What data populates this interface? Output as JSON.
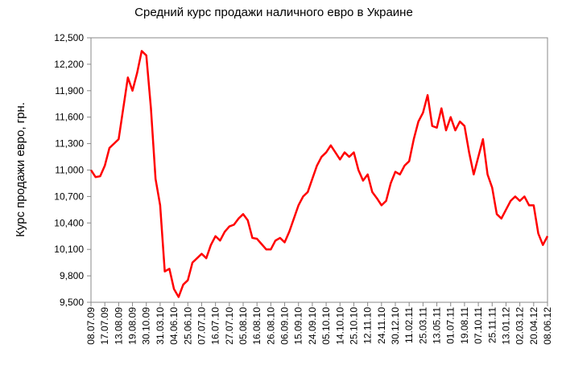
{
  "chart_data": {
    "type": "line",
    "title": "Средний курс продажи наличного евро в Украине",
    "y_label": "Курс продажи евро, грн.",
    "color": "#ff0000",
    "grid": false,
    "ylim": [
      9500,
      12500
    ],
    "yticks": [
      {
        "value": 9500,
        "label": "9,500"
      },
      {
        "value": 9800,
        "label": "9,800"
      },
      {
        "value": 10100,
        "label": "10,100"
      },
      {
        "value": 10400,
        "label": "10,400"
      },
      {
        "value": 10700,
        "label": "10,700"
      },
      {
        "value": 11000,
        "label": "11,000"
      },
      {
        "value": 11300,
        "label": "11,300"
      },
      {
        "value": 11600,
        "label": "11,600"
      },
      {
        "value": 11900,
        "label": "11,900"
      },
      {
        "value": 12200,
        "label": "12,200"
      },
      {
        "value": 12500,
        "label": "12,500"
      }
    ],
    "categories": [
      "08.07.09",
      null,
      null,
      "17.07.09",
      null,
      null,
      "13.08.09",
      null,
      null,
      "19.08.09",
      null,
      null,
      "30.10.09",
      null,
      null,
      "31.03.10",
      null,
      null,
      "04.06.10",
      null,
      null,
      "25.06.10",
      null,
      null,
      "07.07.10",
      null,
      null,
      "16.07.10",
      null,
      null,
      "27.07.10",
      null,
      null,
      "05.08.10",
      null,
      null,
      "16.08.10",
      null,
      null,
      "26.08.10",
      null,
      null,
      "06.09.10",
      null,
      null,
      "15.09.10",
      null,
      null,
      "24.09.10",
      null,
      null,
      "05.10.10",
      null,
      null,
      "14.10.10",
      null,
      null,
      "25.10.10",
      null,
      null,
      "12.11.10",
      null,
      null,
      "24.11.10",
      null,
      null,
      "30.12.10",
      null,
      null,
      "11.02.11",
      null,
      null,
      "25.03.11",
      null,
      null,
      "13.05.11",
      null,
      null,
      "01.07.11",
      null,
      null,
      "19.08.11",
      null,
      null,
      "07.10.11",
      null,
      null,
      "25.11.11",
      null,
      null,
      "13.01.12",
      null,
      null,
      "02.03.12",
      null,
      null,
      "20.04.12",
      null,
      null,
      "08.06.12"
    ],
    "series": [
      {
        "name": "Курс продажи евро",
        "color": "#ff0000",
        "values": [
          11000,
          10920,
          10930,
          11050,
          11250,
          11300,
          11350,
          11700,
          12050,
          11900,
          12100,
          12350,
          12300,
          11700,
          10900,
          10600,
          9850,
          9880,
          9650,
          9560,
          9700,
          9750,
          9950,
          10000,
          10050,
          10000,
          10150,
          10250,
          10200,
          10300,
          10360,
          10380,
          10450,
          10500,
          10430,
          10230,
          10220,
          10160,
          10100,
          10100,
          10200,
          10230,
          10180,
          10300,
          10450,
          10600,
          10700,
          10750,
          10900,
          11050,
          11150,
          11200,
          11280,
          11200,
          11120,
          11200,
          11150,
          11200,
          11000,
          10880,
          10950,
          10750,
          10680,
          10600,
          10650,
          10850,
          10980,
          10950,
          11050,
          11100,
          11350,
          11550,
          11650,
          11850,
          11500,
          11480,
          11700,
          11450,
          11600,
          11450,
          11550,
          11500,
          11200,
          10950,
          11150,
          11350,
          10950,
          10800,
          10500,
          10450,
          10550,
          10650,
          10700,
          10650,
          10700,
          10600,
          10600,
          10280,
          10150,
          10250
        ]
      }
    ]
  }
}
